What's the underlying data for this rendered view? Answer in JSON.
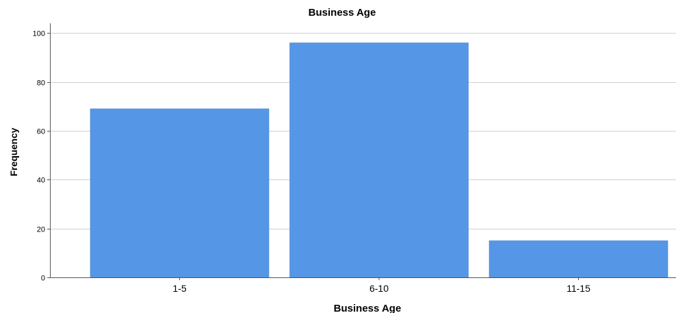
{
  "chart_data": {
    "type": "bar",
    "title": "Business Age",
    "xlabel": "Business Age",
    "ylabel": "Frequency",
    "categories": [
      "1-5",
      "6-10",
      "11-15"
    ],
    "values": [
      69,
      96,
      15
    ],
    "ylim": [
      0,
      104
    ],
    "yticks": [
      "0",
      "20",
      "40",
      "60",
      "80",
      "100"
    ],
    "grid": "horizontal",
    "legend": "none",
    "bar_color": "#5596E6",
    "bar_edge_color": "#4A86D0"
  }
}
